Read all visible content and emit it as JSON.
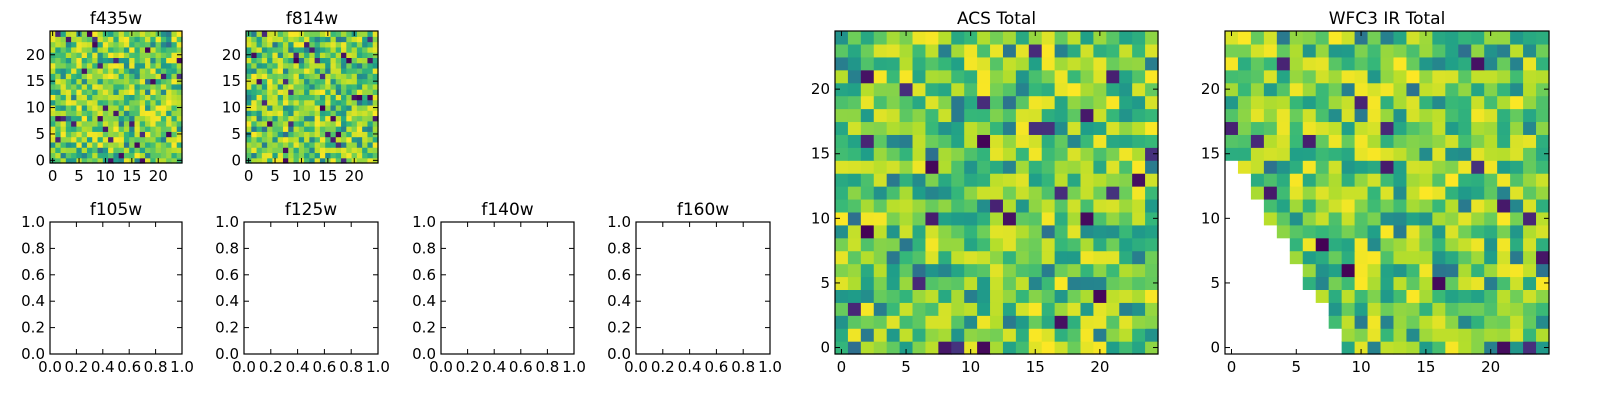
{
  "chart_data": [
    {
      "type": "heatmap",
      "title": "f435w",
      "xlabel": "",
      "ylabel": "",
      "xlim": [
        -0.5,
        24.5
      ],
      "ylim": [
        -0.5,
        24.5
      ],
      "xticks": [
        0,
        5,
        10,
        15,
        20
      ],
      "yticks": [
        0,
        5,
        10,
        15,
        20
      ],
      "grid": false,
      "colormap": "viridis",
      "size": [
        25,
        25
      ],
      "mask": "none",
      "seed": 11,
      "note": "25x25 random-valued grid (noise)"
    },
    {
      "type": "heatmap",
      "title": "f814w",
      "xlabel": "",
      "ylabel": "",
      "xlim": [
        -0.5,
        24.5
      ],
      "ylim": [
        -0.5,
        24.5
      ],
      "xticks": [
        0,
        5,
        10,
        15,
        20
      ],
      "yticks": [
        0,
        5,
        10,
        15,
        20
      ],
      "grid": false,
      "colormap": "viridis",
      "size": [
        25,
        25
      ],
      "mask": "none",
      "seed": 29
    },
    {
      "type": "heatmap",
      "title": "f105w",
      "xlim": [
        0.0,
        1.0
      ],
      "ylim": [
        0.0,
        1.0
      ],
      "xticks": [
        "0.0",
        "0.2",
        "0.4",
        "0.6",
        "0.8",
        "1.0"
      ],
      "yticks": [
        "0.0",
        "0.2",
        "0.4",
        "0.6",
        "0.8",
        "1.0"
      ],
      "grid": false,
      "empty": true
    },
    {
      "type": "heatmap",
      "title": "f125w",
      "xlim": [
        0.0,
        1.0
      ],
      "ylim": [
        0.0,
        1.0
      ],
      "xticks": [
        "0.0",
        "0.2",
        "0.4",
        "0.6",
        "0.8",
        "1.0"
      ],
      "yticks": [
        "0.0",
        "0.2",
        "0.4",
        "0.6",
        "0.8",
        "1.0"
      ],
      "grid": false,
      "empty": true
    },
    {
      "type": "heatmap",
      "title": "f140w",
      "xlim": [
        0.0,
        1.0
      ],
      "ylim": [
        0.0,
        1.0
      ],
      "xticks": [
        "0.0",
        "0.2",
        "0.4",
        "0.6",
        "0.8",
        "1.0"
      ],
      "yticks": [
        "0.0",
        "0.2",
        "0.4",
        "0.6",
        "0.8",
        "1.0"
      ],
      "grid": false,
      "empty": true
    },
    {
      "type": "heatmap",
      "title": "f160w",
      "xlim": [
        0.0,
        1.0
      ],
      "ylim": [
        0.0,
        1.0
      ],
      "xticks": [
        "0.0",
        "0.2",
        "0.4",
        "0.6",
        "0.8",
        "1.0"
      ],
      "yticks": [
        "0.0",
        "0.2",
        "0.4",
        "0.6",
        "0.8",
        "1.0"
      ],
      "grid": false,
      "empty": true
    },
    {
      "type": "heatmap",
      "title": "ACS Total",
      "xlim": [
        -0.5,
        24.5
      ],
      "ylim": [
        -0.5,
        24.5
      ],
      "xticks": [
        0,
        5,
        10,
        15,
        20
      ],
      "yticks": [
        0,
        5,
        10,
        15,
        20
      ],
      "grid": false,
      "colormap": "viridis",
      "size": [
        25,
        25
      ],
      "mask": "none",
      "seed": 47
    },
    {
      "type": "heatmap",
      "title": "WFC3 IR Total",
      "xlim": [
        -0.5,
        24.5
      ],
      "ylim": [
        -0.5,
        24.5
      ],
      "xticks": [
        0,
        5,
        10,
        15,
        20
      ],
      "yticks": [
        0,
        5,
        10,
        15,
        20
      ],
      "grid": false,
      "colormap": "viridis",
      "size": [
        25,
        25
      ],
      "mask": "lower-left triangle blank: cells with col < 9 and row < 15 where row + (col*15/9) < 15",
      "seed": 83
    }
  ]
}
